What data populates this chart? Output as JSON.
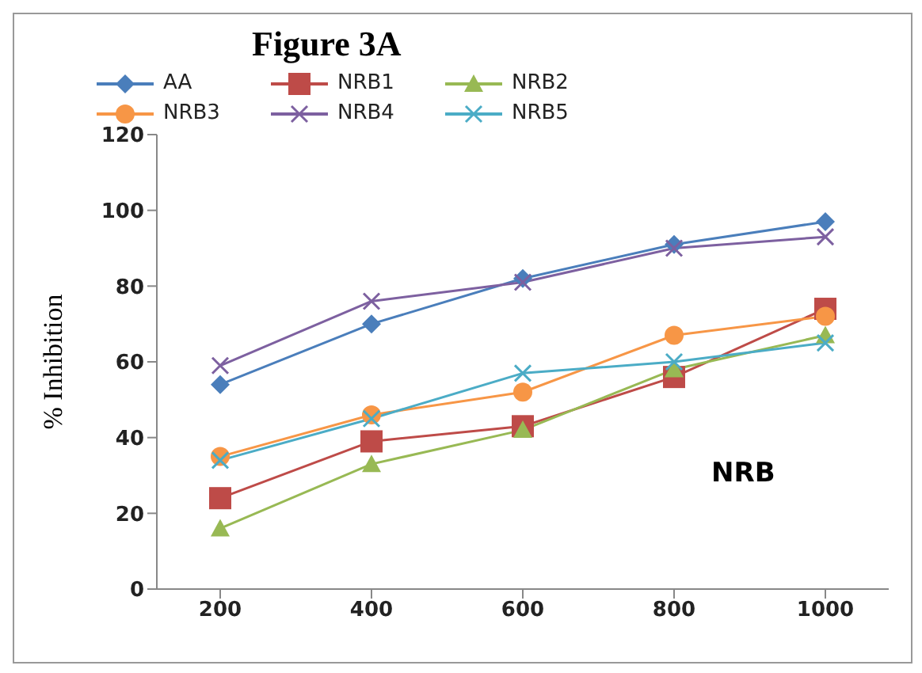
{
  "chart_data": {
    "type": "line",
    "title": "Figure 3A",
    "ylabel": "% Inhibition",
    "annotations": [
      "NRB"
    ],
    "categories": [
      "200",
      "400",
      "600",
      "800",
      "1000"
    ],
    "series": [
      {
        "name": "AA",
        "color": "#4a7ebb",
        "marker": "diamond",
        "values": [
          54,
          70,
          82,
          91,
          97
        ]
      },
      {
        "name": "NRB1",
        "color": "#be4b48",
        "marker": "square",
        "values": [
          24,
          39,
          43,
          56,
          74
        ]
      },
      {
        "name": "NRB2",
        "color": "#98b954",
        "marker": "triangle",
        "values": [
          16,
          33,
          42,
          58,
          67
        ]
      },
      {
        "name": "NRB3",
        "color": "#f79646",
        "marker": "circle",
        "values": [
          35,
          46,
          52,
          67,
          72
        ]
      },
      {
        "name": "NRB4",
        "color": "#7d60a0",
        "marker": "cross",
        "values": [
          59,
          76,
          81,
          90,
          93
        ]
      },
      {
        "name": "NRB5",
        "color": "#4bacc6",
        "marker": "cross",
        "values": [
          34,
          45,
          57,
          60,
          65
        ]
      }
    ],
    "ylim": [
      0,
      120
    ],
    "yticks": [
      0,
      20,
      40,
      60,
      80,
      100,
      120
    ],
    "grid": false,
    "legend": "top"
  }
}
